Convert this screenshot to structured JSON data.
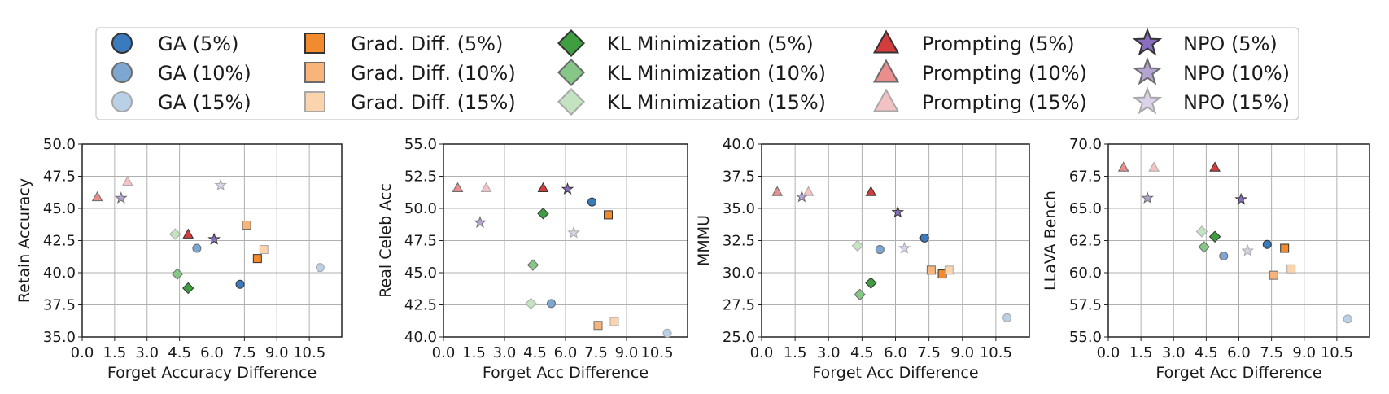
{
  "legend": {
    "columns": [
      [
        {
          "label": "GA (5%)",
          "method": "GA",
          "pct": "5"
        },
        {
          "label": "GA (10%)",
          "method": "GA",
          "pct": "10"
        },
        {
          "label": "GA (15%)",
          "method": "GA",
          "pct": "15"
        }
      ],
      [
        {
          "label": "Grad. Diff. (5%)",
          "method": "GD",
          "pct": "5"
        },
        {
          "label": "Grad. Diff. (10%)",
          "method": "GD",
          "pct": "10"
        },
        {
          "label": "Grad. Diff. (15%)",
          "method": "GD",
          "pct": "15"
        }
      ],
      [
        {
          "label": "KL Minimization (5%)",
          "method": "KL",
          "pct": "5"
        },
        {
          "label": "KL Minimization (10%)",
          "method": "KL",
          "pct": "10"
        },
        {
          "label": "KL Minimization (15%)",
          "method": "KL",
          "pct": "15"
        }
      ],
      [
        {
          "label": "Prompting (5%)",
          "method": "PR",
          "pct": "5"
        },
        {
          "label": "Prompting (10%)",
          "method": "PR",
          "pct": "10"
        },
        {
          "label": "Prompting (15%)",
          "method": "PR",
          "pct": "15"
        }
      ],
      [
        {
          "label": "NPO (5%)",
          "method": "NPO",
          "pct": "5"
        },
        {
          "label": "NPO (10%)",
          "method": "NPO",
          "pct": "10"
        },
        {
          "label": "NPO (15%)",
          "method": "NPO",
          "pct": "15"
        }
      ]
    ]
  },
  "styles": {
    "GA": {
      "marker": "circle-marker",
      "colors": {
        "5": "#3a7bbf",
        "10": "#7da7d0",
        "15": "#b9d0e6"
      }
    },
    "GD": {
      "marker": "square-marker",
      "colors": {
        "5": "#f28a2e",
        "10": "#f7b57c",
        "15": "#fbd3ad"
      }
    },
    "KL": {
      "marker": "diamond-marker",
      "colors": {
        "5": "#3f9e3f",
        "10": "#86c686",
        "15": "#c3e3c1"
      }
    },
    "PR": {
      "marker": "triangle-marker",
      "colors": {
        "5": "#d43d3d",
        "10": "#ea8d8d",
        "15": "#f3c2c2"
      }
    },
    "NPO": {
      "marker": "star-marker",
      "colors": {
        "5": "#8a6fbf",
        "10": "#b3a4d2",
        "15": "#dcd3ea"
      }
    }
  },
  "chart_data": [
    {
      "type": "scatter",
      "xlabel": "Forget Accuracy Difference",
      "ylabel": "Retain Accuracy",
      "xlim": [
        0,
        12
      ],
      "ylim": [
        35.0,
        50.0
      ],
      "xticks": [
        "0.0",
        "1.5",
        "3.0",
        "4.5",
        "6.0",
        "7.5",
        "9.0",
        "10.5"
      ],
      "yticks": [
        "35.0",
        "37.5",
        "40.0",
        "42.5",
        "45.0",
        "47.5",
        "50.0"
      ],
      "grid": true,
      "points": [
        {
          "method": "GA",
          "pct": "5",
          "x": 7.3,
          "y": 39.1
        },
        {
          "method": "GA",
          "pct": "10",
          "x": 5.3,
          "y": 41.9
        },
        {
          "method": "GA",
          "pct": "15",
          "x": 11.0,
          "y": 40.4
        },
        {
          "method": "GD",
          "pct": "5",
          "x": 8.1,
          "y": 41.1
        },
        {
          "method": "GD",
          "pct": "10",
          "x": 7.6,
          "y": 43.7
        },
        {
          "method": "GD",
          "pct": "15",
          "x": 8.4,
          "y": 41.8
        },
        {
          "method": "KL",
          "pct": "5",
          "x": 4.9,
          "y": 38.8
        },
        {
          "method": "KL",
          "pct": "10",
          "x": 4.4,
          "y": 39.9
        },
        {
          "method": "KL",
          "pct": "15",
          "x": 4.3,
          "y": 43.0
        },
        {
          "method": "PR",
          "pct": "5",
          "x": 4.9,
          "y": 43.0
        },
        {
          "method": "PR",
          "pct": "10",
          "x": 0.7,
          "y": 45.9
        },
        {
          "method": "PR",
          "pct": "15",
          "x": 2.1,
          "y": 47.1
        },
        {
          "method": "NPO",
          "pct": "5",
          "x": 6.1,
          "y": 42.6
        },
        {
          "method": "NPO",
          "pct": "10",
          "x": 1.8,
          "y": 45.8
        },
        {
          "method": "NPO",
          "pct": "15",
          "x": 6.4,
          "y": 46.8
        }
      ]
    },
    {
      "type": "scatter",
      "xlabel": "Forget Acc Difference",
      "ylabel": "Real Celeb Acc",
      "xlim": [
        0,
        12
      ],
      "ylim": [
        40.0,
        55.0
      ],
      "xticks": [
        "0.0",
        "1.5",
        "3.0",
        "4.5",
        "6.0",
        "7.5",
        "9.0",
        "10.5"
      ],
      "yticks": [
        "40.0",
        "42.5",
        "45.0",
        "47.5",
        "50.0",
        "52.5",
        "55.0"
      ],
      "grid": true,
      "points": [
        {
          "method": "GA",
          "pct": "5",
          "x": 7.3,
          "y": 50.5
        },
        {
          "method": "GA",
          "pct": "10",
          "x": 5.3,
          "y": 42.6
        },
        {
          "method": "GA",
          "pct": "15",
          "x": 11.0,
          "y": 40.3
        },
        {
          "method": "GD",
          "pct": "5",
          "x": 8.1,
          "y": 49.5
        },
        {
          "method": "GD",
          "pct": "10",
          "x": 7.6,
          "y": 40.9
        },
        {
          "method": "GD",
          "pct": "15",
          "x": 8.4,
          "y": 41.2
        },
        {
          "method": "KL",
          "pct": "5",
          "x": 4.9,
          "y": 49.6
        },
        {
          "method": "KL",
          "pct": "10",
          "x": 4.4,
          "y": 45.6
        },
        {
          "method": "KL",
          "pct": "15",
          "x": 4.3,
          "y": 42.6
        },
        {
          "method": "PR",
          "pct": "5",
          "x": 4.9,
          "y": 51.6
        },
        {
          "method": "PR",
          "pct": "10",
          "x": 0.7,
          "y": 51.6
        },
        {
          "method": "PR",
          "pct": "15",
          "x": 2.1,
          "y": 51.6
        },
        {
          "method": "NPO",
          "pct": "5",
          "x": 6.1,
          "y": 51.5
        },
        {
          "method": "NPO",
          "pct": "10",
          "x": 1.8,
          "y": 48.9
        },
        {
          "method": "NPO",
          "pct": "15",
          "x": 6.4,
          "y": 48.1
        }
      ]
    },
    {
      "type": "scatter",
      "xlabel": "Forget Acc Difference",
      "ylabel": "MMMU",
      "xlim": [
        0,
        12
      ],
      "ylim": [
        25.0,
        40.0
      ],
      "xticks": [
        "0.0",
        "1.5",
        "3.0",
        "4.5",
        "6.0",
        "7.5",
        "9.0",
        "10.5"
      ],
      "yticks": [
        "25.0",
        "27.5",
        "30.0",
        "32.5",
        "35.0",
        "37.5",
        "40.0"
      ],
      "grid": true,
      "points": [
        {
          "method": "GA",
          "pct": "5",
          "x": 7.3,
          "y": 32.7
        },
        {
          "method": "GA",
          "pct": "10",
          "x": 5.3,
          "y": 31.8
        },
        {
          "method": "GA",
          "pct": "15",
          "x": 11.0,
          "y": 26.5
        },
        {
          "method": "GD",
          "pct": "5",
          "x": 8.1,
          "y": 29.9
        },
        {
          "method": "GD",
          "pct": "10",
          "x": 7.6,
          "y": 30.2
        },
        {
          "method": "GD",
          "pct": "15",
          "x": 8.4,
          "y": 30.2
        },
        {
          "method": "KL",
          "pct": "5",
          "x": 4.9,
          "y": 29.2
        },
        {
          "method": "KL",
          "pct": "10",
          "x": 4.4,
          "y": 28.3
        },
        {
          "method": "KL",
          "pct": "15",
          "x": 4.3,
          "y": 32.1
        },
        {
          "method": "PR",
          "pct": "5",
          "x": 4.9,
          "y": 36.3
        },
        {
          "method": "PR",
          "pct": "10",
          "x": 0.7,
          "y": 36.3
        },
        {
          "method": "PR",
          "pct": "15",
          "x": 2.1,
          "y": 36.3
        },
        {
          "method": "NPO",
          "pct": "5",
          "x": 6.1,
          "y": 34.7
        },
        {
          "method": "NPO",
          "pct": "10",
          "x": 1.8,
          "y": 35.9
        },
        {
          "method": "NPO",
          "pct": "15",
          "x": 6.4,
          "y": 31.9
        }
      ]
    },
    {
      "type": "scatter",
      "xlabel": "Forget Acc Difference",
      "ylabel": "LLaVA Bench",
      "xlim": [
        0,
        12
      ],
      "ylim": [
        55.0,
        70.0
      ],
      "xticks": [
        "0.0",
        "1.5",
        "3.0",
        "4.5",
        "6.0",
        "7.5",
        "9.0",
        "10.5"
      ],
      "yticks": [
        "55.0",
        "57.5",
        "60.0",
        "62.5",
        "65.0",
        "67.5",
        "70.0"
      ],
      "grid": true,
      "points": [
        {
          "method": "GA",
          "pct": "5",
          "x": 7.3,
          "y": 62.2
        },
        {
          "method": "GA",
          "pct": "10",
          "x": 5.3,
          "y": 61.3
        },
        {
          "method": "GA",
          "pct": "15",
          "x": 11.0,
          "y": 56.4
        },
        {
          "method": "GD",
          "pct": "5",
          "x": 8.1,
          "y": 61.9
        },
        {
          "method": "GD",
          "pct": "10",
          "x": 7.6,
          "y": 59.8
        },
        {
          "method": "GD",
          "pct": "15",
          "x": 8.4,
          "y": 60.3
        },
        {
          "method": "KL",
          "pct": "5",
          "x": 4.9,
          "y": 62.8
        },
        {
          "method": "KL",
          "pct": "10",
          "x": 4.4,
          "y": 62.0
        },
        {
          "method": "KL",
          "pct": "15",
          "x": 4.3,
          "y": 63.2
        },
        {
          "method": "PR",
          "pct": "5",
          "x": 4.9,
          "y": 68.2
        },
        {
          "method": "PR",
          "pct": "10",
          "x": 0.7,
          "y": 68.2
        },
        {
          "method": "PR",
          "pct": "15",
          "x": 2.1,
          "y": 68.2
        },
        {
          "method": "NPO",
          "pct": "5",
          "x": 6.1,
          "y": 65.7
        },
        {
          "method": "NPO",
          "pct": "10",
          "x": 1.8,
          "y": 65.8
        },
        {
          "method": "NPO",
          "pct": "15",
          "x": 6.4,
          "y": 61.7
        }
      ]
    }
  ]
}
